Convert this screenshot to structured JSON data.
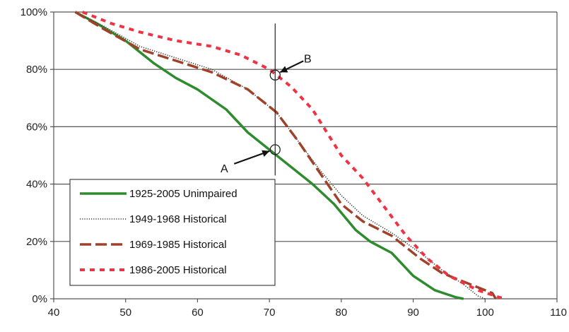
{
  "chart_data": {
    "type": "line",
    "xlim": [
      40,
      110
    ],
    "ylim": [
      0,
      100
    ],
    "x_ticks": [
      "40",
      "50",
      "60",
      "70",
      "80",
      "90",
      "100",
      "110"
    ],
    "y_ticks": [
      "0%",
      "20%",
      "40%",
      "60%",
      "80%",
      "100%"
    ],
    "grid": "horizontal",
    "legend_position": "bottom-left",
    "series": [
      {
        "name": "1925-2005 Unimpaired",
        "color": "#2e8b2e",
        "style": "solid",
        "points": [
          [
            43,
            100
          ],
          [
            46,
            96
          ],
          [
            50,
            90
          ],
          [
            54,
            82
          ],
          [
            57,
            77
          ],
          [
            60,
            73
          ],
          [
            64,
            66
          ],
          [
            67,
            58
          ],
          [
            70,
            52
          ],
          [
            73,
            46
          ],
          [
            76,
            40
          ],
          [
            79,
            33
          ],
          [
            82,
            24
          ],
          [
            84,
            20
          ],
          [
            87,
            16
          ],
          [
            90,
            8
          ],
          [
            93,
            3
          ],
          [
            96,
            0.5
          ],
          [
            97,
            0
          ]
        ]
      },
      {
        "name": "1949-1968 Historical",
        "color": "#333333",
        "style": "dotted",
        "points": [
          [
            43,
            100
          ],
          [
            47,
            95
          ],
          [
            52,
            88
          ],
          [
            57,
            84
          ],
          [
            62,
            80
          ],
          [
            67,
            73
          ],
          [
            71,
            65
          ],
          [
            74,
            55
          ],
          [
            77,
            45
          ],
          [
            80,
            36
          ],
          [
            83,
            29
          ],
          [
            87,
            23
          ],
          [
            91,
            16
          ],
          [
            94,
            10
          ],
          [
            97,
            5
          ],
          [
            99,
            1
          ],
          [
            100,
            0
          ]
        ]
      },
      {
        "name": "1969-1985 Historical",
        "color": "#a0412a",
        "style": "dashed",
        "points": [
          [
            43,
            100
          ],
          [
            47,
            94
          ],
          [
            52,
            87
          ],
          [
            57,
            83
          ],
          [
            62,
            79
          ],
          [
            67,
            73
          ],
          [
            71,
            65
          ],
          [
            74,
            55
          ],
          [
            77,
            44
          ],
          [
            80,
            33
          ],
          [
            83,
            27
          ],
          [
            87,
            22
          ],
          [
            91,
            14
          ],
          [
            94,
            9
          ],
          [
            98,
            5
          ],
          [
            101,
            2
          ],
          [
            101.5,
            0
          ]
        ]
      },
      {
        "name": "1986-2005 Historical",
        "color": "#ee3344",
        "style": "short-dash",
        "points": [
          [
            44,
            100
          ],
          [
            48,
            96
          ],
          [
            52,
            93
          ],
          [
            57,
            90
          ],
          [
            62,
            88
          ],
          [
            66,
            85
          ],
          [
            70,
            80
          ],
          [
            73,
            74
          ],
          [
            76,
            66
          ],
          [
            78,
            58
          ],
          [
            80,
            50
          ],
          [
            83,
            42
          ],
          [
            86,
            32
          ],
          [
            89,
            22
          ],
          [
            92,
            14
          ],
          [
            95,
            8
          ],
          [
            99,
            3
          ],
          [
            102,
            0.5
          ],
          [
            103,
            0
          ]
        ]
      }
    ],
    "marker_line_x": 70.8,
    "annotations": [
      {
        "label": "A",
        "x": 70.8,
        "y": 52
      },
      {
        "label": "B",
        "x": 70.8,
        "y": 78
      }
    ]
  }
}
